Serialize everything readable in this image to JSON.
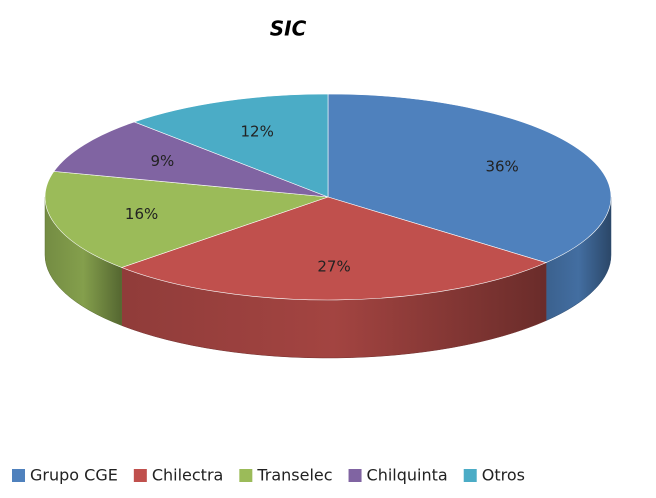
{
  "chart_data": {
    "type": "pie",
    "style": "3d",
    "title": "SIC",
    "categories": [
      "Grupo CGE",
      "Chilectra",
      "Transelec",
      "Chilquinta",
      "Otros"
    ],
    "values": [
      36,
      27,
      16,
      9,
      12
    ],
    "value_labels": [
      "36%",
      "27%",
      "16%",
      "9%",
      "12%"
    ],
    "colors": [
      "#4f81bd",
      "#c0504d",
      "#9bbb59",
      "#8064a2",
      "#4bacc6"
    ],
    "legend": "bottom"
  }
}
